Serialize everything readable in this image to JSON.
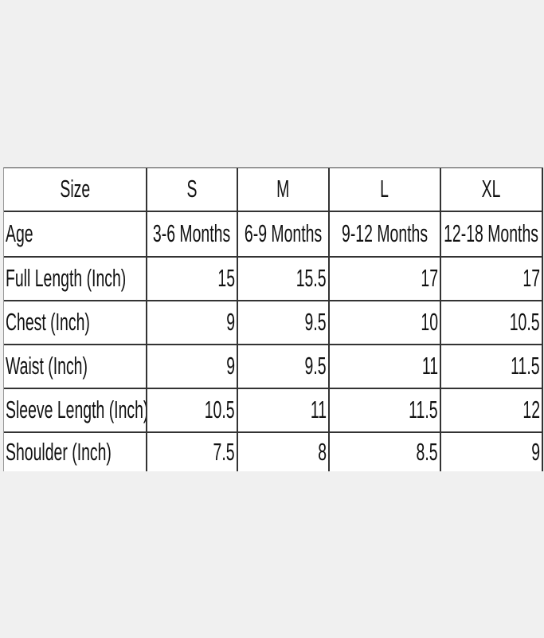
{
  "table": {
    "header": [
      "Size",
      "S",
      "M",
      "L",
      "XL"
    ],
    "rows": [
      [
        "Age",
        "3-6 Months",
        "6-9 Months",
        "9-12 Months",
        "12-18 Months"
      ],
      [
        "Full Length (Inch)",
        15,
        15.5,
        17,
        17
      ],
      [
        "Chest (Inch)",
        9,
        9.5,
        10,
        10.5
      ],
      [
        "Waist (Inch)",
        9,
        9.5,
        11,
        11.5
      ],
      [
        "Sleeve Length (Inch)",
        10.5,
        11,
        11.5,
        12
      ],
      [
        "Shoulder (Inch)",
        7.5,
        8,
        8.5,
        9
      ]
    ]
  }
}
